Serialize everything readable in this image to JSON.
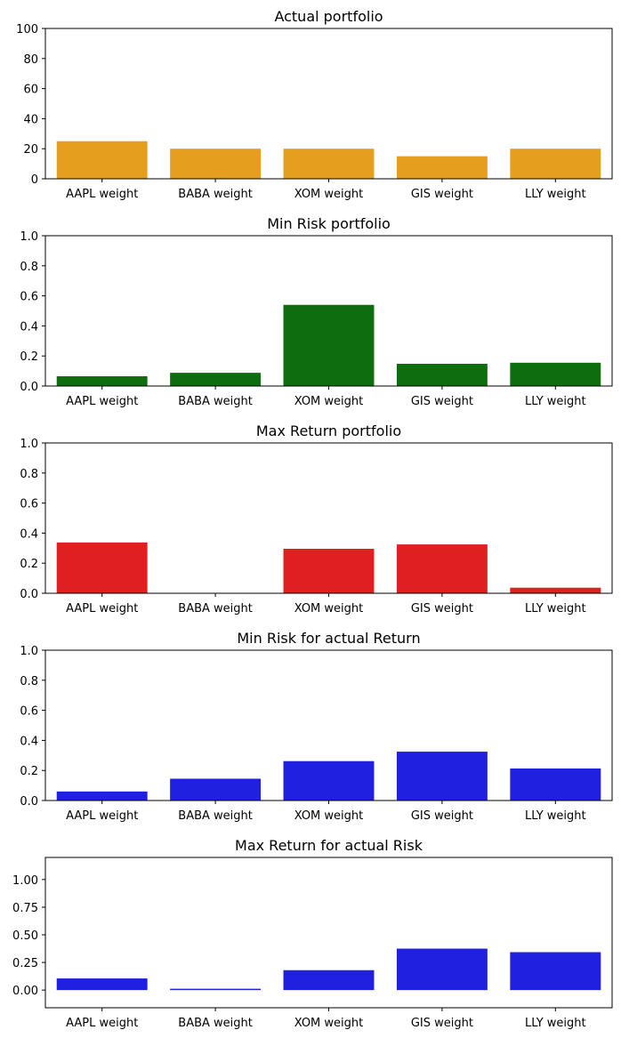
{
  "chart_data": [
    {
      "type": "bar",
      "title": "Actual portfolio",
      "categories": [
        "AAPL weight",
        "BABA weight",
        "XOM weight",
        "GIS weight",
        "LLY weight"
      ],
      "values": [
        25,
        20,
        20,
        15,
        20
      ],
      "ylim": [
        0,
        100
      ],
      "yticks": [
        "0",
        "20",
        "40",
        "60",
        "80",
        "100"
      ],
      "ytick_values": [
        0,
        20,
        40,
        60,
        80,
        100
      ],
      "color": "#e69f1c",
      "xlabel": "",
      "ylabel": ""
    },
    {
      "type": "bar",
      "title": "Min Risk portfolio",
      "categories": [
        "AAPL weight",
        "BABA weight",
        "XOM weight",
        "GIS weight",
        "LLY weight"
      ],
      "values": [
        0.065,
        0.088,
        0.54,
        0.148,
        0.155
      ],
      "ylim": [
        0,
        1.0
      ],
      "yticks": [
        "0.0",
        "0.2",
        "0.4",
        "0.6",
        "0.8",
        "1.0"
      ],
      "ytick_values": [
        0,
        0.2,
        0.4,
        0.6,
        0.8,
        1.0
      ],
      "color": "#0e6e0e",
      "xlabel": "",
      "ylabel": ""
    },
    {
      "type": "bar",
      "title": "Max Return portfolio",
      "categories": [
        "AAPL weight",
        "BABA weight",
        "XOM weight",
        "GIS weight",
        "LLY weight"
      ],
      "values": [
        0.338,
        0.0,
        0.296,
        0.325,
        0.037
      ],
      "ylim": [
        0,
        1.0
      ],
      "yticks": [
        "0.0",
        "0.2",
        "0.4",
        "0.6",
        "0.8",
        "1.0"
      ],
      "ytick_values": [
        0,
        0.2,
        0.4,
        0.6,
        0.8,
        1.0
      ],
      "color": "#e02020",
      "xlabel": "",
      "ylabel": ""
    },
    {
      "type": "bar",
      "title": "Min Risk for actual Return",
      "categories": [
        "AAPL weight",
        "BABA weight",
        "XOM weight",
        "GIS weight",
        "LLY weight"
      ],
      "values": [
        0.06,
        0.145,
        0.262,
        0.325,
        0.213
      ],
      "ylim": [
        0,
        1.0
      ],
      "yticks": [
        "0.0",
        "0.2",
        "0.4",
        "0.6",
        "0.8",
        "1.0"
      ],
      "ytick_values": [
        0,
        0.2,
        0.4,
        0.6,
        0.8,
        1.0
      ],
      "color": "#2020e0",
      "xlabel": "",
      "ylabel": ""
    },
    {
      "type": "bar",
      "title": "Max Return for actual Risk",
      "categories": [
        "AAPL weight",
        "BABA weight",
        "XOM weight",
        "GIS weight",
        "LLY weight"
      ],
      "values": [
        0.105,
        0.012,
        0.18,
        0.375,
        0.343
      ],
      "ylim": [
        -0.16,
        1.2
      ],
      "yticks": [
        "0.00",
        "0.25",
        "0.50",
        "0.75",
        "1.00"
      ],
      "ytick_values": [
        0,
        0.25,
        0.5,
        0.75,
        1.0
      ],
      "color": "#2020e0",
      "xlabel": "",
      "ylabel": ""
    }
  ]
}
